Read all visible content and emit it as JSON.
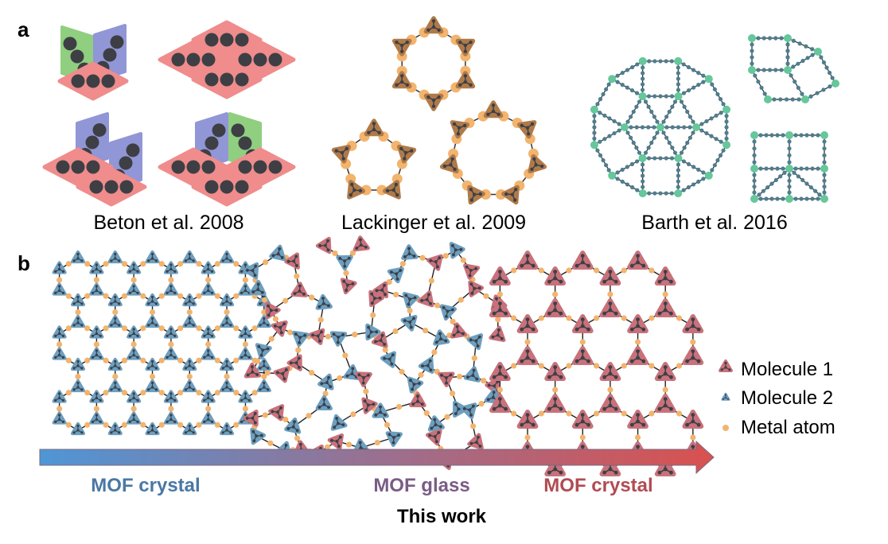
{
  "panels": {
    "a": {
      "label": "a",
      "captions": [
        "Beton et al. 2008",
        "Lackinger et al. 2009",
        "Barth et al. 2016"
      ]
    },
    "b": {
      "label": "b",
      "legend": [
        "Molecule 1",
        "Molecule 2",
        "Metal atom"
      ],
      "stages": [
        "MOF crystal",
        "MOF glass",
        "MOF crystal"
      ],
      "footer": "This work"
    }
  },
  "colors": {
    "molecule1": "#c9717a",
    "molecule2": "#6c9fc0",
    "metal": "#f2b46e",
    "arrow_start": "#4e96d6",
    "arrow_end": "#d9514f",
    "stage_blue": "#4a78a4",
    "stage_purple": "#7a5c86",
    "stage_red": "#b04c52",
    "beton_pink": "#f08c8c",
    "beton_blue": "#9196d6",
    "beton_green": "#8fcf7f",
    "lackinger": "#b07a48",
    "barth_node": "#66c79a",
    "barth_chain": "#4f7d8e"
  }
}
